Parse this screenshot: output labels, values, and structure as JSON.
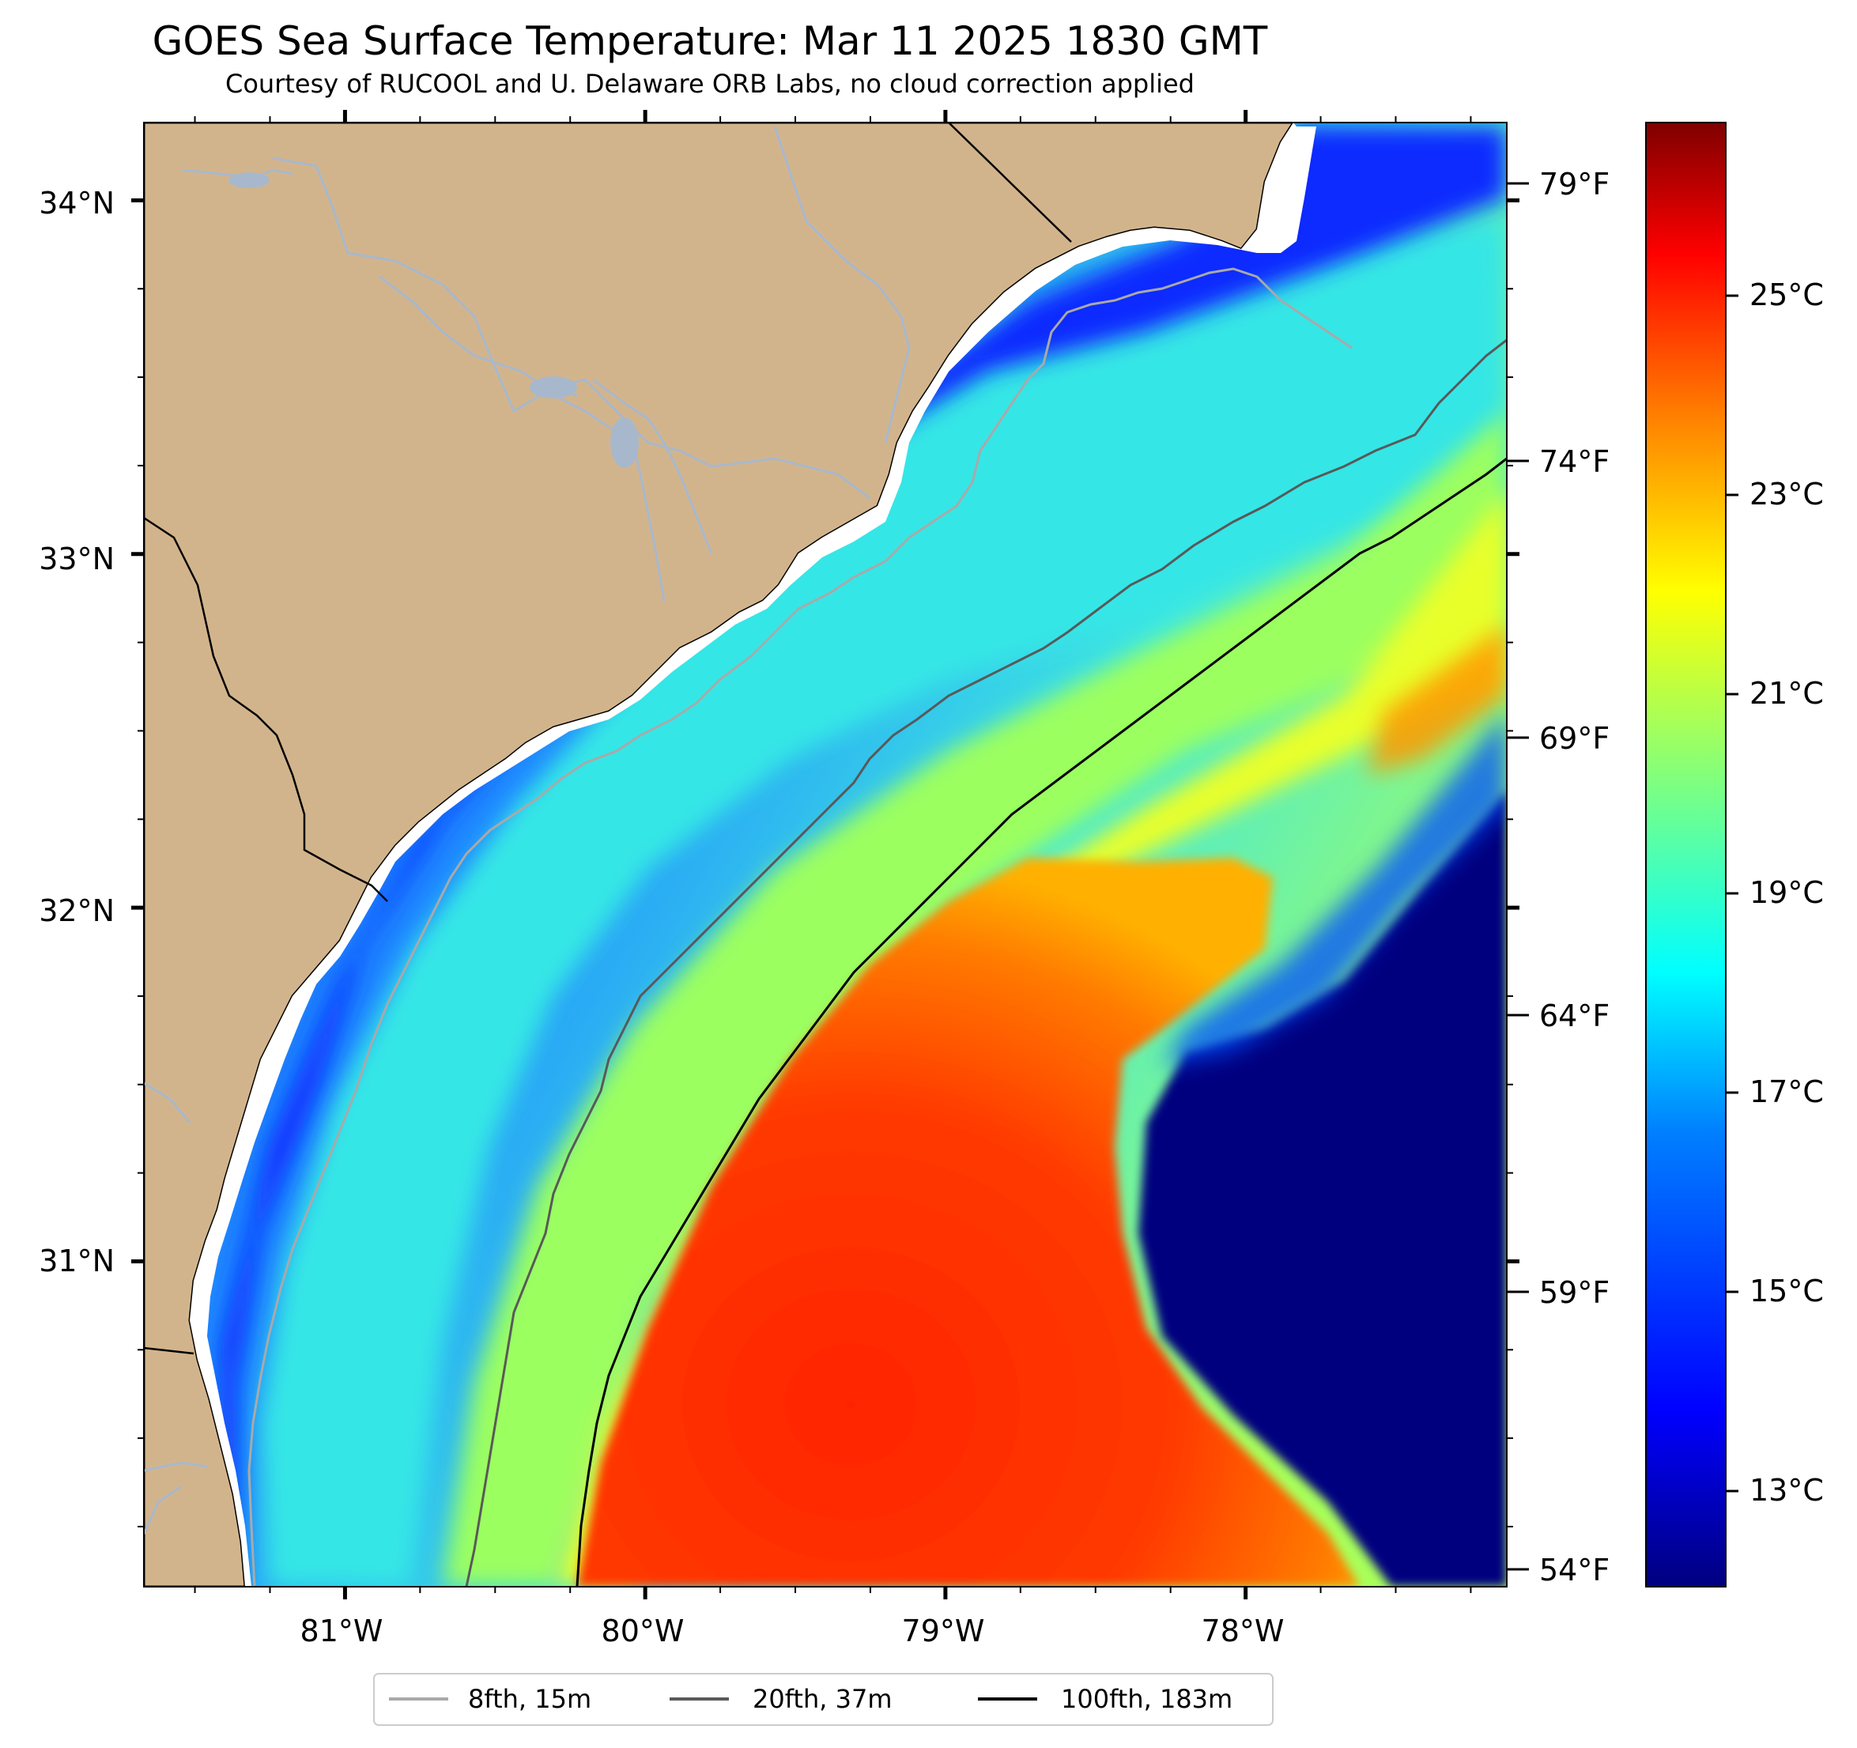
{
  "title": "GOES Sea Surface Temperature: Mar 11 2025 1830 GMT",
  "subtitle": "Courtesy of RUCOOL and U. Delaware ORB Labs, no cloud correction applied",
  "map": {
    "extent": {
      "lon_min": -81.67,
      "lon_max": -77.13,
      "lat_min": 30.08,
      "lat_max": 34.22
    },
    "land_color": "#d2b48c",
    "coastline_color": "#000000",
    "river_color": "#a8b8cc",
    "lat_labels": [
      {
        "value": 34,
        "label": "34°N"
      },
      {
        "value": 33,
        "label": "33°N"
      },
      {
        "value": 32,
        "label": "32°N"
      },
      {
        "value": 31,
        "label": "31°N"
      }
    ],
    "lon_labels": [
      {
        "value": -81,
        "label": "81°W"
      },
      {
        "value": -80,
        "label": "80°W"
      },
      {
        "value": -79,
        "label": "79°W"
      },
      {
        "value": -78,
        "label": "78°W"
      }
    ],
    "fahrenheit_labels": [
      "79°F",
      "74°F",
      "69°F",
      "64°F",
      "59°F",
      "54°F"
    ]
  },
  "colorbar": {
    "colormap": "jet",
    "labels": [
      "25°C",
      "23°C",
      "21°C",
      "19°C",
      "17°C",
      "15°C",
      "13°C"
    ],
    "colors": [
      "#00007f",
      "#0000ff",
      "#007fff",
      "#00ffff",
      "#7fff7f",
      "#ffff00",
      "#ff7f00",
      "#ff0000",
      "#7f0000"
    ]
  },
  "legend": [
    {
      "label": "8fth, 15m",
      "color": "#a9a9a9"
    },
    {
      "label": "20fth, 37m",
      "color": "#595959"
    },
    {
      "label": "100fth, 183m",
      "color": "#000000"
    }
  ]
}
